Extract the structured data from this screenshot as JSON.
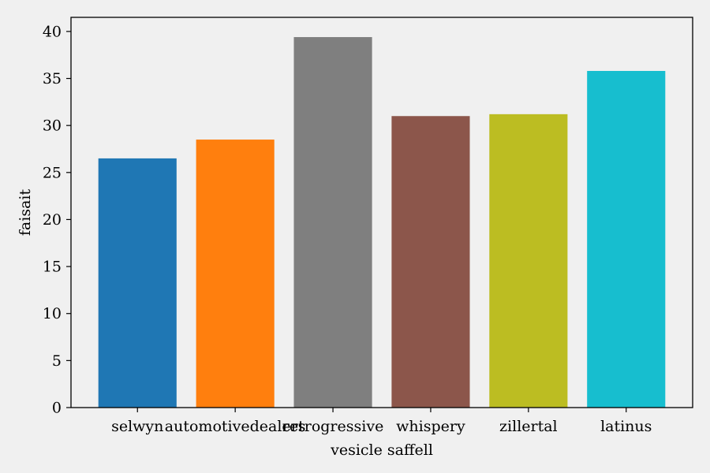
{
  "chart_data": {
    "type": "bar",
    "xlabel": "vesicle saffell",
    "ylabel": "faisait",
    "ylim": [
      0,
      41.5
    ],
    "yticks": [
      0,
      5,
      10,
      15,
      20,
      25,
      30,
      35,
      40
    ],
    "categories": [
      "selwyn",
      "automotivedealers",
      "retrogressive",
      "whispery",
      "zillertal",
      "latinus"
    ],
    "values": [
      26.5,
      28.5,
      39.4,
      31.0,
      31.2,
      35.8
    ],
    "colors": [
      "#1f77b4",
      "#ff7f0e",
      "#7f7f7f",
      "#8c564b",
      "#bcbd22",
      "#17becf"
    ],
    "grid": false,
    "legend": "none"
  }
}
